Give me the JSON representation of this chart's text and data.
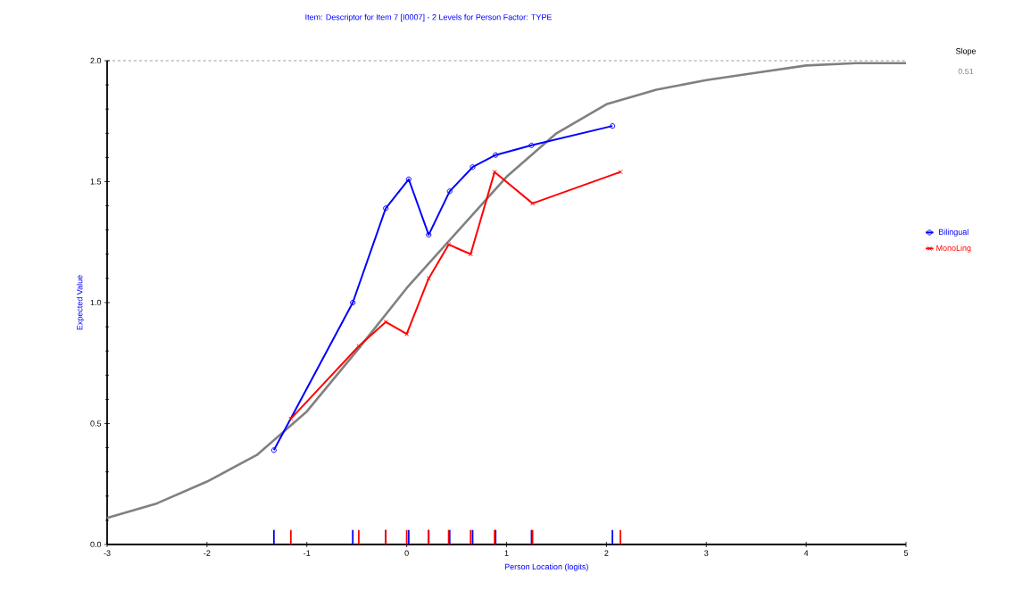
{
  "chart_data": {
    "type": "line",
    "title": "Item: Descriptor for Item 7 [I0007] - 2 Levels for Person Factor: TYPE",
    "xlabel": "Person Location (logits)",
    "ylabel": "Expected Value",
    "annotations": [
      "Slope",
      "0.51"
    ],
    "xlim": [
      -3,
      5
    ],
    "xticks": [
      -3,
      -2,
      -1,
      0,
      1,
      2,
      3,
      4,
      5
    ],
    "ylim": [
      0,
      2.0
    ],
    "yticks": [
      {
        "value": 0,
        "label": "0.0"
      },
      {
        "value": 0.5,
        "label": "0.5"
      },
      {
        "value": 1.0,
        "label": "1.0"
      },
      {
        "value": 1.5,
        "label": "1.5"
      },
      {
        "value": 2.0,
        "label": "2.0"
      }
    ],
    "grid": false,
    "legend": "right",
    "ref_lines": [
      {
        "axis": "y",
        "value": 2.0,
        "color": "#000000",
        "line_style": "dashed"
      }
    ],
    "series": [
      {
        "color": "#808080",
        "marker": "none",
        "x": [
          -3,
          -2.5,
          -2,
          -1.5,
          -1,
          -0.5,
          0,
          0.5,
          1,
          1.5,
          2,
          2.5,
          3,
          3.5,
          4,
          4.5,
          5
        ],
        "values": [
          0.11,
          0.17,
          0.26,
          0.37,
          0.55,
          0.8,
          1.06,
          1.29,
          1.52,
          1.7,
          1.82,
          1.88,
          1.92,
          1.95,
          1.98,
          1.99,
          1.99
        ]
      },
      {
        "name": "Bilingual",
        "color": "#0000ff",
        "marker": "circle",
        "x": [
          -1.33,
          -0.54,
          -0.21,
          0.02,
          0.22,
          0.43,
          0.66,
          0.89,
          1.25,
          2.06
        ],
        "values": [
          0.39,
          1.0,
          1.39,
          1.51,
          1.28,
          1.46,
          1.56,
          1.61,
          1.65,
          1.73
        ]
      },
      {
        "name": "MonoLing",
        "color": "#ff0000",
        "marker": "cross",
        "x": [
          -1.16,
          -0.48,
          -0.21,
          0.0,
          0.22,
          0.42,
          0.64,
          0.88,
          1.26,
          2.14
        ],
        "values": [
          0.52,
          0.82,
          0.92,
          0.87,
          1.1,
          1.24,
          1.2,
          1.54,
          1.41,
          1.54
        ]
      }
    ]
  }
}
